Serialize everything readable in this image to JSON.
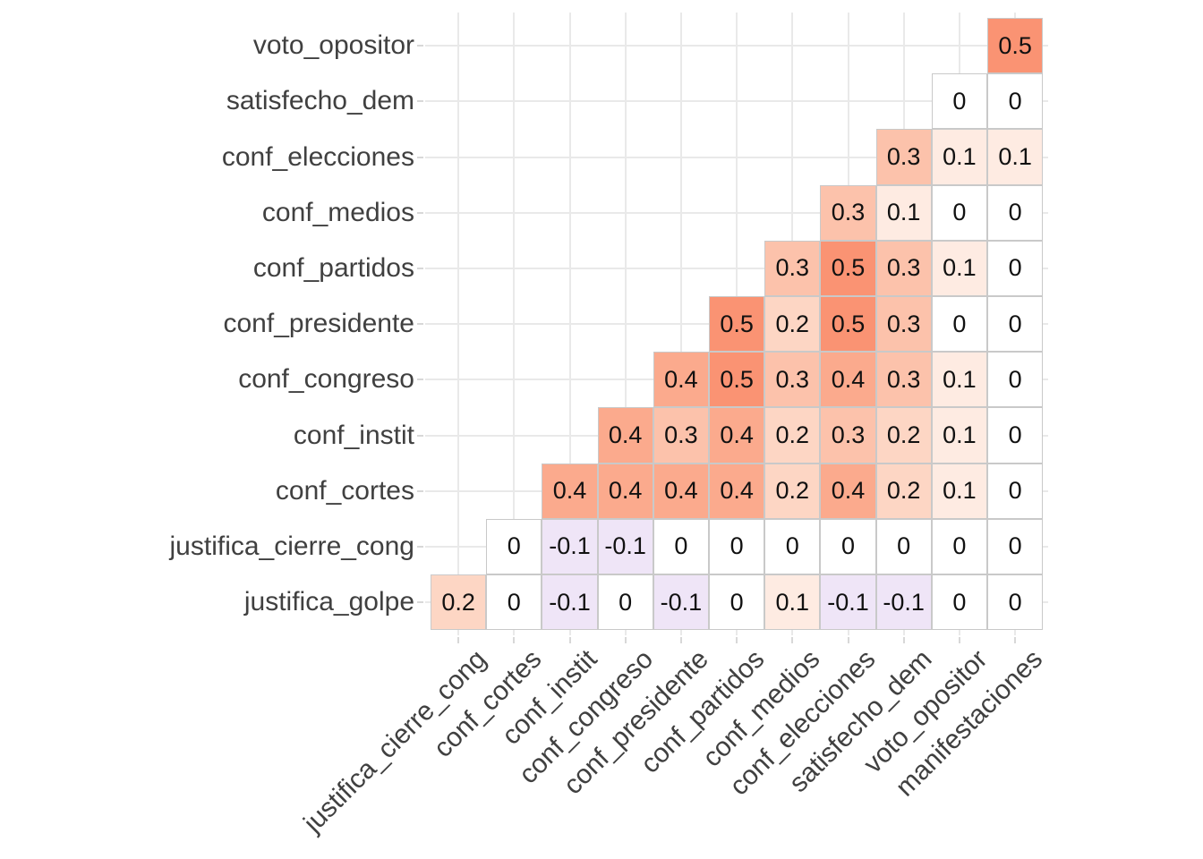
{
  "chart_data": {
    "type": "heatmap",
    "title": "",
    "xlabel": "",
    "ylabel": "",
    "legend_position": "none",
    "grid": true,
    "value_range": [
      -1,
      1
    ],
    "x_categories": [
      "justifica_cierre_cong",
      "conf_cortes",
      "conf_instit",
      "conf_congreso",
      "conf_presidente",
      "conf_partidos",
      "conf_medios",
      "conf_elecciones",
      "satisfecho_dem",
      "voto_opositor",
      "manifestaciones"
    ],
    "y_categories": [
      "voto_opositor",
      "satisfecho_dem",
      "conf_elecciones",
      "conf_medios",
      "conf_partidos",
      "conf_presidente",
      "conf_congreso",
      "conf_instit",
      "conf_cortes",
      "justifica_cierre_cong",
      "justifica_golpe"
    ],
    "matrix": [
      [
        null,
        null,
        null,
        null,
        null,
        null,
        null,
        null,
        null,
        null,
        0.5
      ],
      [
        null,
        null,
        null,
        null,
        null,
        null,
        null,
        null,
        null,
        0,
        0
      ],
      [
        null,
        null,
        null,
        null,
        null,
        null,
        null,
        null,
        0.3,
        0.1,
        0.1
      ],
      [
        null,
        null,
        null,
        null,
        null,
        null,
        null,
        0.3,
        0.1,
        0,
        0
      ],
      [
        null,
        null,
        null,
        null,
        null,
        null,
        0.3,
        0.5,
        0.3,
        0.1,
        0
      ],
      [
        null,
        null,
        null,
        null,
        null,
        0.5,
        0.2,
        0.5,
        0.3,
        0,
        0
      ],
      [
        null,
        null,
        null,
        null,
        0.4,
        0.5,
        0.3,
        0.4,
        0.3,
        0.1,
        0
      ],
      [
        null,
        null,
        null,
        0.4,
        0.3,
        0.4,
        0.2,
        0.3,
        0.2,
        0.1,
        0
      ],
      [
        null,
        null,
        0.4,
        0.4,
        0.4,
        0.4,
        0.2,
        0.4,
        0.2,
        0.1,
        0
      ],
      [
        null,
        0,
        -0.1,
        -0.1,
        0,
        0,
        0,
        0,
        0,
        0,
        0
      ],
      [
        0.2,
        0,
        -0.1,
        0,
        -0.1,
        0,
        0.1,
        -0.1,
        -0.1,
        0,
        0
      ]
    ],
    "color_scale": [
      {
        "value": -0.1,
        "color": "#efe5f7"
      },
      {
        "value": 0,
        "color": "#ffffff"
      },
      {
        "value": 0.1,
        "color": "#feebe2"
      },
      {
        "value": 0.2,
        "color": "#fdd6c4"
      },
      {
        "value": 0.3,
        "color": "#fcc2ab"
      },
      {
        "value": 0.4,
        "color": "#fbaa8d"
      },
      {
        "value": 0.5,
        "color": "#fa9373"
      }
    ]
  },
  "style": {
    "background": "#ffffff",
    "gridline_color": "#e9e9e9",
    "tile_border_color": "#c9c9c9",
    "tick_color": "#d8d8d8",
    "axis_text_color": "#404040",
    "value_text_color": "#111111"
  }
}
